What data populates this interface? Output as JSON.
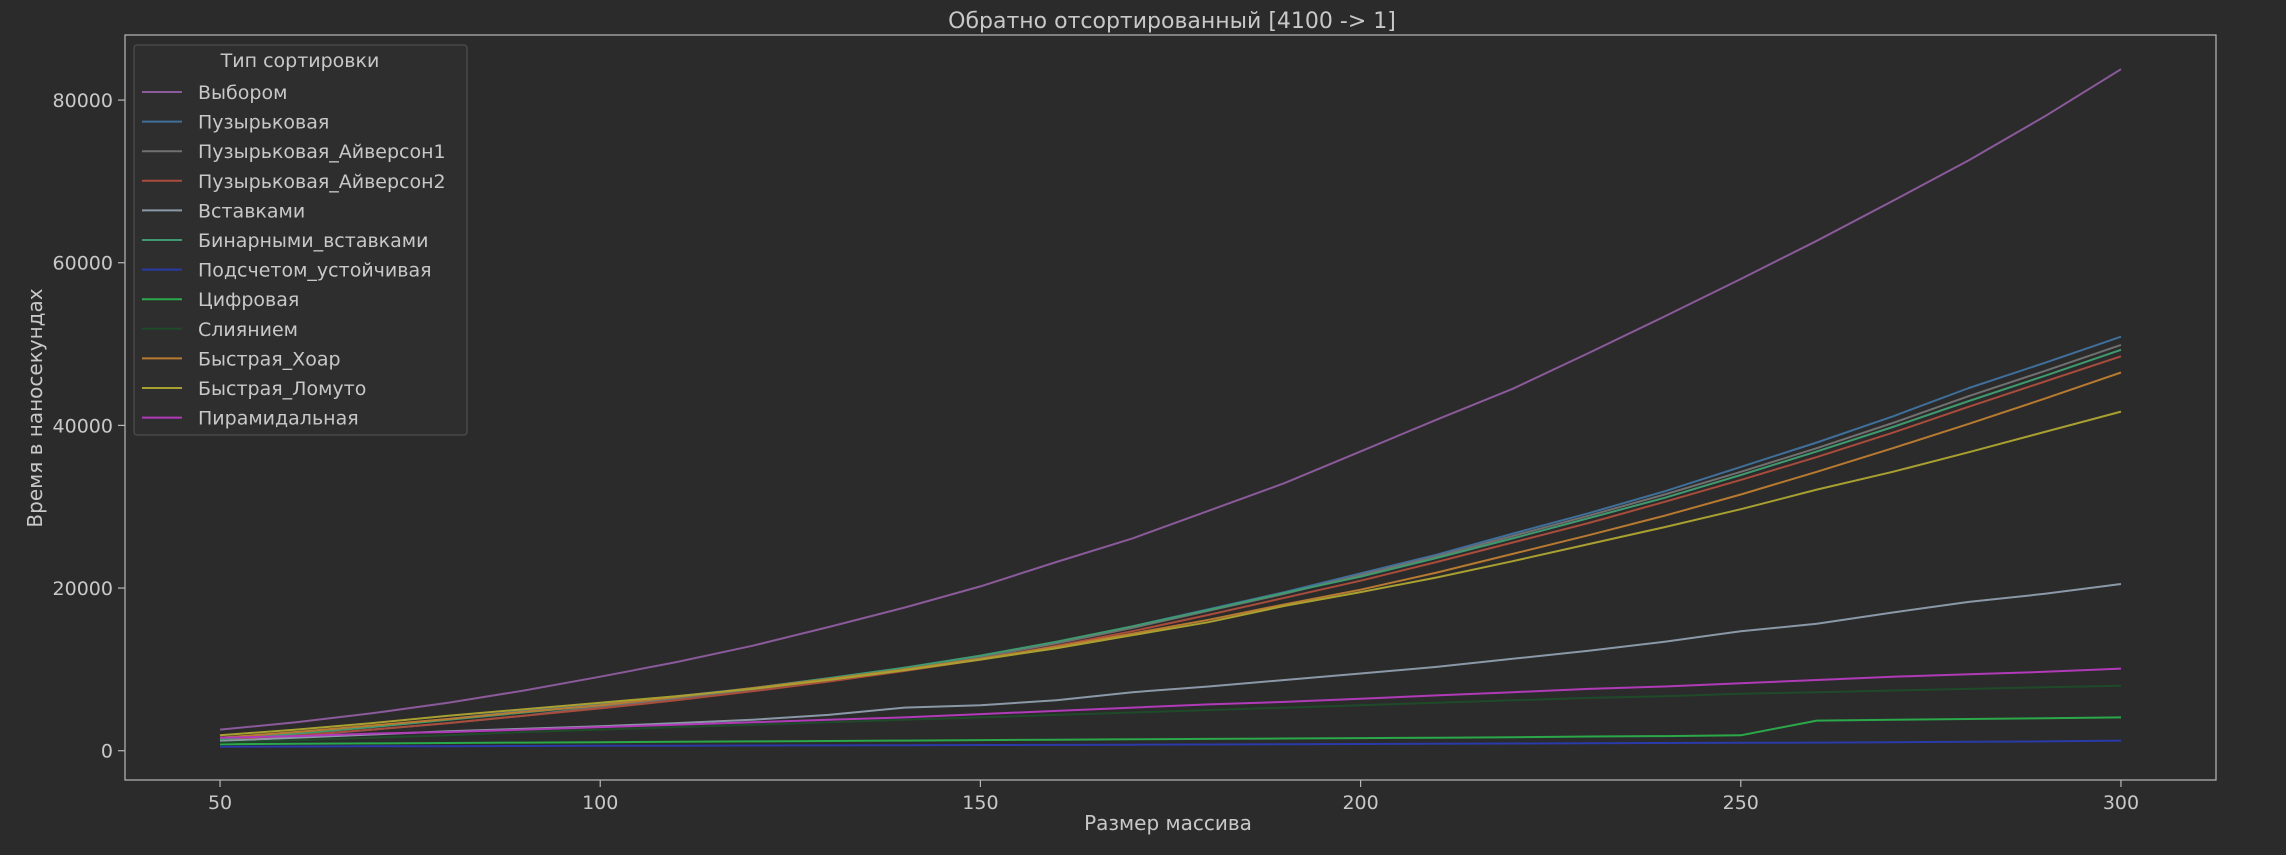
{
  "colors": {
    "background": "#2b2b2b",
    "axes_face": "#2b2b2b",
    "spine": "#b8b8b8",
    "text": "#c8c8c8",
    "legend_face": "#2e2e2e",
    "legend_edge": "#555555"
  },
  "chart_data": {
    "type": "line",
    "title": "Обратно отсортированный [4100 -> 1]",
    "xlabel": "Размер массива",
    "ylabel": "Время в наносекундах",
    "xlim": [
      37.5,
      312.5
    ],
    "ylim": [
      -3600,
      88000
    ],
    "x_ticks": [
      50,
      100,
      150,
      200,
      250,
      300
    ],
    "y_ticks": [
      0,
      20000,
      40000,
      60000,
      80000
    ],
    "grid": false,
    "legend": {
      "title": "Тип сортировки",
      "placement": "top-left"
    },
    "x": [
      50,
      60,
      70,
      80,
      90,
      100,
      110,
      120,
      130,
      140,
      150,
      160,
      170,
      180,
      190,
      200,
      210,
      220,
      230,
      240,
      250,
      260,
      270,
      280,
      290,
      300
    ],
    "series": [
      {
        "name": "Выбором",
        "color": "#8a5a9a",
        "values": [
          2600,
          3500,
          4600,
          5900,
          7400,
          9100,
          10900,
          12900,
          15200,
          17600,
          20200,
          23200,
          26100,
          29500,
          32900,
          36800,
          40700,
          44500,
          48900,
          53400,
          58000,
          62700,
          67600,
          72600,
          78000,
          83800
        ]
      },
      {
        "name": "Пузырьковая",
        "color": "#3f6f9a",
        "values": [
          1500,
          2200,
          3000,
          3900,
          4900,
          5700,
          6700,
          7700,
          8900,
          10200,
          11600,
          13300,
          15300,
          17400,
          19500,
          21800,
          24100,
          26700,
          29200,
          31900,
          34900,
          37900,
          41100,
          44600,
          47700,
          50900
        ]
      },
      {
        "name": "Пузырьковая_Айверсон1",
        "color": "#707070",
        "values": [
          1200,
          1800,
          2600,
          3400,
          4300,
          5400,
          6400,
          7500,
          8800,
          10100,
          11500,
          13200,
          15100,
          17200,
          19300,
          21600,
          23900,
          26400,
          28900,
          31500,
          34300,
          37200,
          40300,
          43600,
          46700,
          49900
        ]
      },
      {
        "name": "Пузырьковая_Айверсон2",
        "color": "#a84c3c",
        "values": [
          1300,
          1900,
          2600,
          3400,
          4300,
          5200,
          6200,
          7300,
          8500,
          9800,
          11200,
          12900,
          14700,
          16700,
          18800,
          20900,
          23200,
          25600,
          28000,
          30600,
          33300,
          36100,
          39100,
          42300,
          45400,
          48500
        ]
      },
      {
        "name": "Вставками",
        "color": "#8a98a8",
        "values": [
          1200,
          1600,
          2000,
          2400,
          2700,
          3000,
          3400,
          3800,
          4400,
          5300,
          5600,
          6200,
          7200,
          7900,
          8700,
          9500,
          10300,
          11300,
          12300,
          13400,
          14700,
          15600,
          17000,
          18300,
          19300,
          20500
        ]
      },
      {
        "name": "Бинарными_вставками",
        "color": "#3f9a6f",
        "values": [
          1400,
          2100,
          2900,
          3800,
          4700,
          5600,
          6600,
          7700,
          8900,
          10200,
          11700,
          13400,
          15300,
          17300,
          19400,
          21400,
          23700,
          26100,
          28600,
          31100,
          33900,
          36800,
          39800,
          43000,
          46100,
          49300
        ]
      },
      {
        "name": "Подсчетом_устойчивая",
        "color": "#2a3aa8",
        "values": [
          500,
          520,
          540,
          560,
          580,
          600,
          620,
          640,
          660,
          680,
          700,
          720,
          740,
          770,
          800,
          830,
          860,
          890,
          920,
          950,
          980,
          1000,
          1050,
          1100,
          1150,
          1250
        ]
      },
      {
        "name": "Цифровая",
        "color": "#2aa84a",
        "values": [
          800,
          850,
          900,
          950,
          1000,
          1050,
          1100,
          1150,
          1200,
          1250,
          1300,
          1350,
          1400,
          1450,
          1500,
          1550,
          1600,
          1650,
          1750,
          1800,
          1900,
          3700,
          3800,
          3900,
          4000,
          4100
        ]
      },
      {
        "name": "Слиянием",
        "color": "#1f4a2a",
        "values": [
          1000,
          1300,
          1600,
          1900,
          2300,
          2600,
          2900,
          3200,
          3500,
          3800,
          4100,
          4400,
          4700,
          5000,
          5300,
          5600,
          5900,
          6200,
          6500,
          6700,
          7000,
          7200,
          7400,
          7600,
          7800,
          8000
        ]
      },
      {
        "name": "Быстрая_Хоар",
        "color": "#b87a30",
        "values": [
          1600,
          2300,
          3100,
          3900,
          4800,
          5600,
          6600,
          7700,
          8800,
          10000,
          11300,
          12800,
          14400,
          16100,
          18000,
          19800,
          21900,
          24200,
          26500,
          28900,
          31500,
          34300,
          37200,
          40200,
          43300,
          46500
        ]
      },
      {
        "name": "Быстрая_Ломуто",
        "color": "#a8a030",
        "values": [
          1900,
          2600,
          3400,
          4300,
          5100,
          5900,
          6700,
          7600,
          8700,
          9900,
          11200,
          12600,
          14200,
          15800,
          17800,
          19500,
          21300,
          23300,
          25400,
          27500,
          29700,
          32100,
          34300,
          36700,
          39200,
          41700
        ]
      },
      {
        "name": "Пирамидальная",
        "color": "#b03ab8",
        "values": [
          1600,
          1800,
          2100,
          2300,
          2600,
          2900,
          3200,
          3500,
          3800,
          4100,
          4500,
          4900,
          5300,
          5700,
          6000,
          6400,
          6800,
          7200,
          7600,
          7900,
          8300,
          8700,
          9100,
          9400,
          9700,
          10100
        ]
      }
    ]
  }
}
